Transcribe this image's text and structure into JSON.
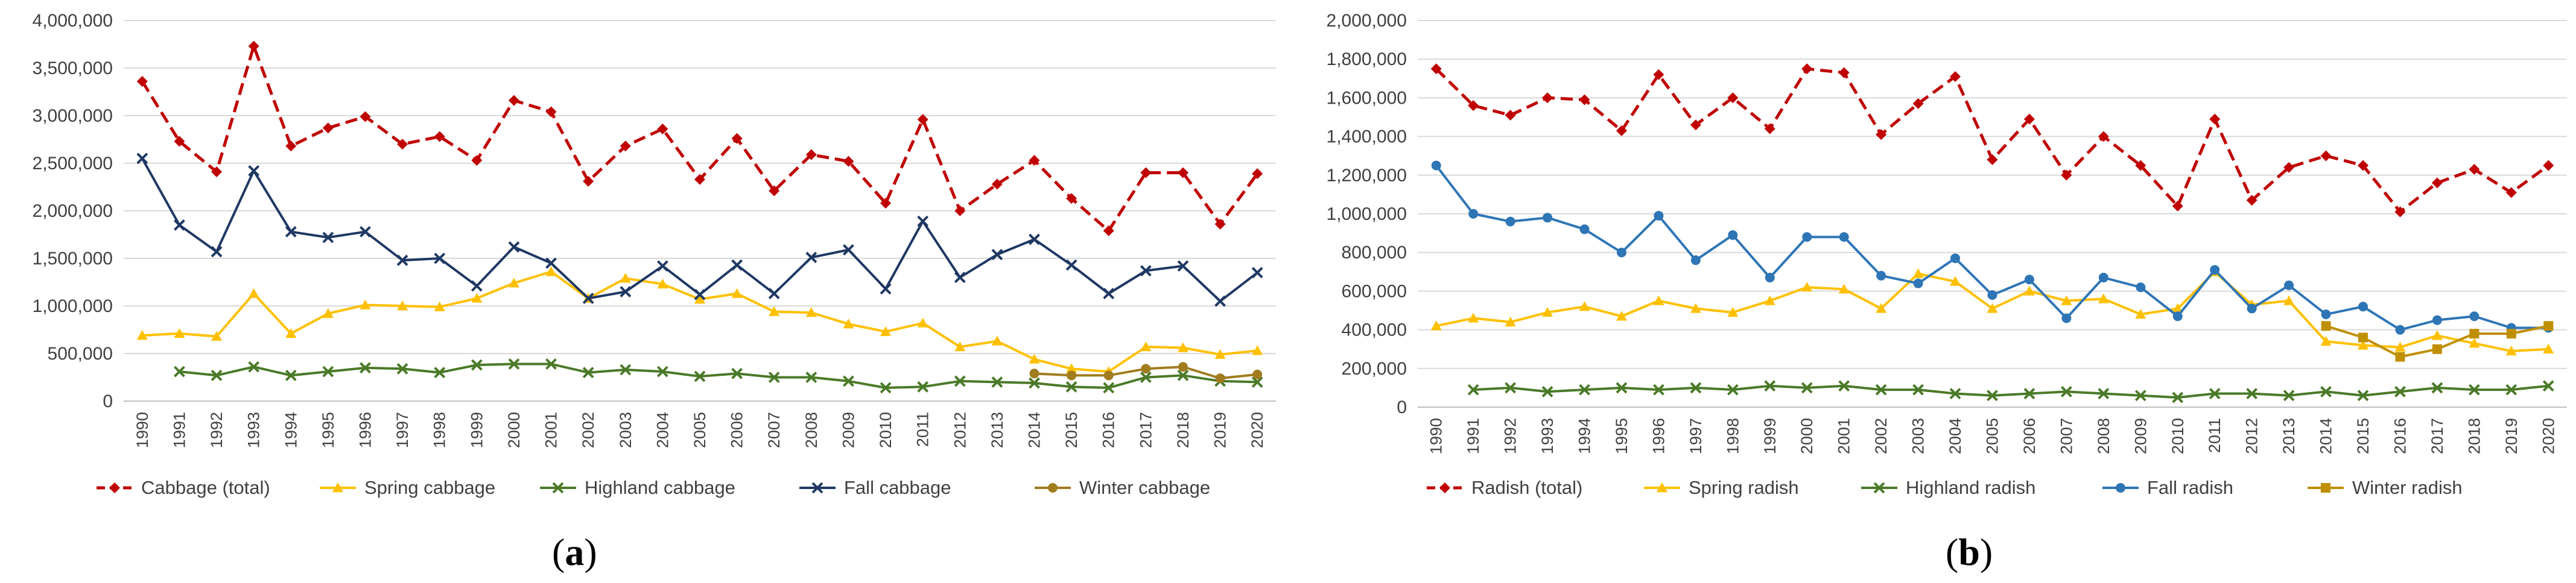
{
  "panels": [
    {
      "caption": {
        "open": "(",
        "letter": "a",
        "close": ")"
      }
    },
    {
      "caption": {
        "open": "(",
        "letter": "b",
        "close": ")"
      }
    }
  ],
  "chart_data": [
    {
      "type": "line",
      "title": "",
      "xlabel": "",
      "ylabel": "",
      "ylim": [
        0,
        4000000
      ],
      "yticks": [
        "0",
        "500,000",
        "1,000,000",
        "1,500,000",
        "2,000,000",
        "2,500,000",
        "3,000,000",
        "3,500,000",
        "4,000,000"
      ],
      "ytick_values": [
        0,
        500000,
        1000000,
        1500000,
        2000000,
        2500000,
        3000000,
        3500000,
        4000000
      ],
      "grid": true,
      "legend_position": "bottom",
      "categories": [
        "1990",
        "1991",
        "1992",
        "1993",
        "1994",
        "1995",
        "1996",
        "1997",
        "1998",
        "1999",
        "2000",
        "2001",
        "2002",
        "2003",
        "2004",
        "2005",
        "2006",
        "2007",
        "2008",
        "2009",
        "2010",
        "2011",
        "2012",
        "2013",
        "2014",
        "2015",
        "2016",
        "2017",
        "2018",
        "2019",
        "2020"
      ],
      "series": [
        {
          "name": "Cabbage (total)",
          "color": "#c00000",
          "dashed": true,
          "marker": "diamond",
          "values": [
            3360000,
            2730000,
            2410000,
            3730000,
            2680000,
            2870000,
            2990000,
            2700000,
            2780000,
            2530000,
            3160000,
            3040000,
            2310000,
            2680000,
            2860000,
            2330000,
            2760000,
            2210000,
            2590000,
            2520000,
            2080000,
            2960000,
            2000000,
            2280000,
            2530000,
            2130000,
            1790000,
            2400000,
            2400000,
            1860000,
            2390000
          ]
        },
        {
          "name": "Spring cabbage",
          "color": "#ffc000",
          "dashed": false,
          "marker": "triangle",
          "values": [
            690000,
            710000,
            680000,
            1130000,
            710000,
            920000,
            1010000,
            1000000,
            990000,
            1080000,
            1240000,
            1360000,
            1080000,
            1290000,
            1230000,
            1070000,
            1130000,
            940000,
            930000,
            810000,
            730000,
            820000,
            570000,
            630000,
            440000,
            340000,
            310000,
            570000,
            560000,
            490000,
            530000
          ]
        },
        {
          "name": "Highland cabbage",
          "color": "#4a7a28",
          "dashed": false,
          "marker": "x",
          "values": [
            null,
            310000,
            270000,
            360000,
            270000,
            310000,
            350000,
            340000,
            300000,
            380000,
            390000,
            390000,
            300000,
            330000,
            310000,
            260000,
            290000,
            250000,
            250000,
            210000,
            140000,
            150000,
            210000,
            200000,
            190000,
            150000,
            140000,
            250000,
            270000,
            210000,
            200000
          ]
        },
        {
          "name": "Fall cabbage",
          "color": "#1f3864",
          "dashed": false,
          "marker": "x",
          "values": [
            2550000,
            1850000,
            1570000,
            2420000,
            1780000,
            1720000,
            1780000,
            1480000,
            1500000,
            1210000,
            1620000,
            1450000,
            1080000,
            1150000,
            1420000,
            1120000,
            1430000,
            1130000,
            1510000,
            1590000,
            1180000,
            1890000,
            1300000,
            1540000,
            1700000,
            1430000,
            1130000,
            1370000,
            1420000,
            1050000,
            1350000
          ]
        },
        {
          "name": "Winter cabbage",
          "color": "#a07c1f",
          "dashed": false,
          "marker": "circle",
          "values": [
            null,
            null,
            null,
            null,
            null,
            null,
            null,
            null,
            null,
            null,
            null,
            null,
            null,
            null,
            null,
            null,
            null,
            null,
            null,
            null,
            null,
            null,
            null,
            null,
            290000,
            270000,
            270000,
            340000,
            360000,
            240000,
            280000
          ]
        }
      ]
    },
    {
      "type": "line",
      "title": "",
      "xlabel": "",
      "ylabel": "",
      "ylim": [
        0,
        2000000
      ],
      "yticks": [
        "0",
        "200,000",
        "400,000",
        "600,000",
        "800,000",
        "1,000,000",
        "1,200,000",
        "1,400,000",
        "1,600,000",
        "1,800,000",
        "2,000,000"
      ],
      "ytick_values": [
        0,
        200000,
        400000,
        600000,
        800000,
        1000000,
        1200000,
        1400000,
        1600000,
        1800000,
        2000000
      ],
      "grid": true,
      "legend_position": "bottom",
      "categories": [
        "1990",
        "1991",
        "1992",
        "1993",
        "1994",
        "1995",
        "1996",
        "1997",
        "1998",
        "1999",
        "2000",
        "2001",
        "2002",
        "2003",
        "2004",
        "2005",
        "2006",
        "2007",
        "2008",
        "2009",
        "2010",
        "2011",
        "2012",
        "2013",
        "2014",
        "2015",
        "2016",
        "2017",
        "2018",
        "2019",
        "2020"
      ],
      "series": [
        {
          "name": "Radish (total)",
          "color": "#c00000",
          "dashed": true,
          "marker": "diamond",
          "values": [
            1750000,
            1560000,
            1510000,
            1600000,
            1590000,
            1430000,
            1720000,
            1460000,
            1600000,
            1440000,
            1750000,
            1730000,
            1410000,
            1570000,
            1710000,
            1280000,
            1490000,
            1200000,
            1400000,
            1250000,
            1040000,
            1490000,
            1070000,
            1240000,
            1300000,
            1250000,
            1010000,
            1160000,
            1230000,
            1110000,
            1250000
          ]
        },
        {
          "name": "Spring radish",
          "color": "#ffc000",
          "dashed": false,
          "marker": "triangle",
          "values": [
            420000,
            460000,
            440000,
            490000,
            520000,
            470000,
            550000,
            510000,
            490000,
            550000,
            620000,
            610000,
            510000,
            690000,
            650000,
            510000,
            600000,
            550000,
            560000,
            480000,
            510000,
            700000,
            530000,
            550000,
            340000,
            320000,
            310000,
            370000,
            330000,
            290000,
            300000
          ]
        },
        {
          "name": "Highland radish",
          "color": "#4a7a28",
          "dashed": false,
          "marker": "x",
          "values": [
            null,
            90000,
            100000,
            80000,
            90000,
            100000,
            90000,
            100000,
            90000,
            110000,
            100000,
            110000,
            90000,
            90000,
            70000,
            60000,
            70000,
            80000,
            70000,
            60000,
            50000,
            70000,
            70000,
            60000,
            80000,
            60000,
            80000,
            100000,
            90000,
            90000,
            110000
          ]
        },
        {
          "name": "Fall radish",
          "color": "#2e75b6",
          "dashed": false,
          "marker": "circle",
          "values": [
            1250000,
            1000000,
            960000,
            980000,
            920000,
            800000,
            990000,
            760000,
            890000,
            670000,
            880000,
            880000,
            680000,
            640000,
            770000,
            580000,
            660000,
            460000,
            670000,
            620000,
            470000,
            710000,
            510000,
            630000,
            480000,
            520000,
            400000,
            450000,
            470000,
            410000,
            410000
          ]
        },
        {
          "name": "Winter radish",
          "color": "#bf8f00",
          "dashed": false,
          "marker": "square",
          "values": [
            null,
            null,
            null,
            null,
            null,
            null,
            null,
            null,
            null,
            null,
            null,
            null,
            null,
            null,
            null,
            null,
            null,
            null,
            null,
            null,
            null,
            null,
            null,
            null,
            420000,
            360000,
            260000,
            300000,
            380000,
            380000,
            420000
          ]
        }
      ]
    }
  ]
}
